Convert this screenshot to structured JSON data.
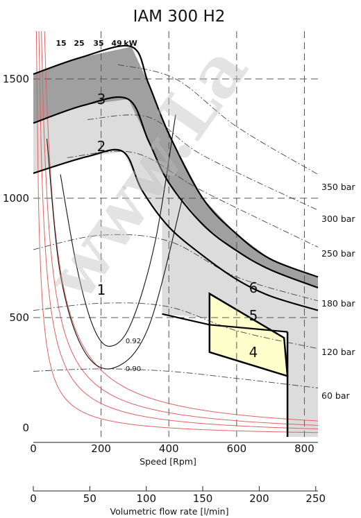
{
  "chart_data": {
    "type": "line",
    "title": "IAM 300 H2",
    "xlabel": "Speed [Rpm]",
    "ylabel": "",
    "xlim": [
      0,
      840
    ],
    "ylim": [
      0,
      1700
    ],
    "x_ticks": [
      "0",
      "200",
      "400",
      "600",
      "800"
    ],
    "y_ticks": [
      "0",
      "500",
      "1000",
      "1500"
    ],
    "secondary_x_axis": {
      "label": "Volumetric flow rate [l/min]",
      "range": [
        0,
        252
      ],
      "ticks": [
        "0",
        "50",
        "100",
        "150",
        "200",
        "250"
      ]
    },
    "grid": true,
    "watermark": "www.La",
    "power_lines": {
      "unit": "kW",
      "series": [
        {
          "name": "15",
          "kw": 15
        },
        {
          "name": "25",
          "kw": 25
        },
        {
          "name": "35",
          "kw": 35
        },
        {
          "name": "49",
          "kw": 49
        }
      ]
    },
    "pressure_lines": {
      "series": [
        {
          "name": "60 bar",
          "bar": 60
        },
        {
          "name": "120 bar",
          "bar": 120
        },
        {
          "name": "180 bar",
          "bar": 180
        },
        {
          "name": "250 bar",
          "bar": 250
        },
        {
          "name": "300 bar",
          "bar": 300
        },
        {
          "name": "350 bar",
          "bar": 350
        }
      ]
    },
    "efficiency_contours": [
      {
        "name": "0.92",
        "value": 0.92
      },
      {
        "name": "0.90",
        "value": 0.9
      }
    ],
    "operating_regions": [
      {
        "name": "1",
        "color": "#ffffff"
      },
      {
        "name": "2",
        "color": "#dcdcdc"
      },
      {
        "name": "3",
        "color": "#a0a0a0"
      },
      {
        "name": "4",
        "color": "#ffffcc"
      },
      {
        "name": "5",
        "color": "#dcdcdc"
      },
      {
        "name": "6",
        "color": "#a0a0a0"
      }
    ],
    "boundaries": {
      "region1_top": [
        [
          0,
          1105
        ],
        [
          160,
          1175
        ],
        [
          265,
          1195
        ],
        [
          320,
          1035
        ],
        [
          400,
          880
        ],
        [
          500,
          760
        ],
        [
          600,
          660
        ],
        [
          700,
          590
        ],
        [
          840,
          530
        ]
      ],
      "region2_top": [
        [
          0,
          1315
        ],
        [
          150,
          1390
        ],
        [
          280,
          1415
        ],
        [
          340,
          1240
        ],
        [
          400,
          1065
        ],
        [
          500,
          890
        ],
        [
          600,
          780
        ],
        [
          700,
          700
        ],
        [
          840,
          625
        ]
      ],
      "region3_top": [
        [
          0,
          1520
        ],
        [
          140,
          1590
        ],
        [
          290,
          1635
        ],
        [
          340,
          1480
        ],
        [
          400,
          1270
        ],
        [
          500,
          1000
        ],
        [
          600,
          850
        ],
        [
          700,
          745
        ],
        [
          840,
          670
        ]
      ],
      "region5_bottom": [
        [
          0,
          545
        ],
        [
          300,
          525
        ],
        [
          500,
          500
        ],
        [
          650,
          470
        ],
        [
          750,
          440
        ],
        [
          840,
          420
        ]
      ],
      "region4": [
        [
          520,
          600
        ],
        [
          740,
          415
        ],
        [
          750,
          255
        ],
        [
          520,
          355
        ]
      ],
      "speed_limit": [
        [
          750,
          0
        ],
        [
          750,
          440
        ]
      ],
      "flow_limit_rpm": 750
    },
    "colors": {
      "dark_gray": "#a0a0a0",
      "light_gray": "#dcdcdc",
      "yellow": "#ffffcc",
      "power_line": "#e06060",
      "grid": "#555555"
    }
  }
}
